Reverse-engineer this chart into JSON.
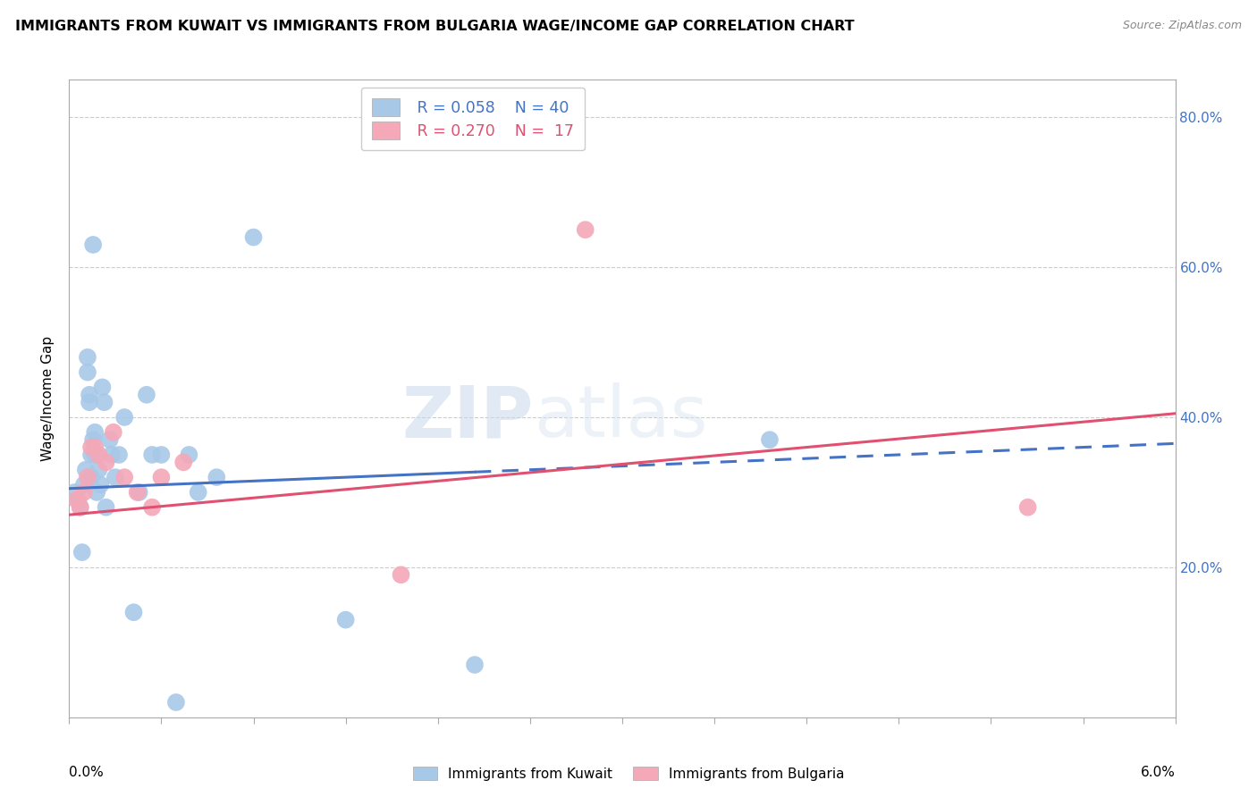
{
  "title": "IMMIGRANTS FROM KUWAIT VS IMMIGRANTS FROM BULGARIA WAGE/INCOME GAP CORRELATION CHART",
  "source": "Source: ZipAtlas.com",
  "ylabel": "Wage/Income Gap",
  "xlim": [
    0.0,
    6.0
  ],
  "ylim": [
    0.0,
    85.0
  ],
  "yticks": [
    0,
    20,
    40,
    60,
    80
  ],
  "legend_r1": "R = 0.058",
  "legend_n1": "N = 40",
  "legend_r2": "R = 0.270",
  "legend_n2": "N =  17",
  "kuwait_color": "#a8c8e8",
  "bulgaria_color": "#f4a8b8",
  "kuwait_line_color": "#4472c4",
  "bulgaria_line_color": "#e05070",
  "watermark_zip": "ZIP",
  "watermark_atlas": "atlas",
  "kuwait_x": [
    0.03,
    0.05,
    0.06,
    0.07,
    0.08,
    0.09,
    0.1,
    0.1,
    0.11,
    0.11,
    0.12,
    0.12,
    0.13,
    0.13,
    0.14,
    0.14,
    0.15,
    0.16,
    0.17,
    0.18,
    0.19,
    0.2,
    0.22,
    0.23,
    0.25,
    0.27,
    0.3,
    0.35,
    0.38,
    0.42,
    0.45,
    0.5,
    0.58,
    0.65,
    0.7,
    0.8,
    1.0,
    1.5,
    2.2,
    3.8
  ],
  "kuwait_y": [
    30,
    29,
    28,
    22,
    31,
    33,
    46,
    48,
    43,
    42,
    35,
    32,
    37,
    63,
    38,
    35,
    30,
    33,
    31,
    44,
    42,
    28,
    37,
    35,
    32,
    35,
    40,
    14,
    30,
    43,
    35,
    35,
    2,
    35,
    30,
    32,
    64,
    13,
    7,
    37
  ],
  "bulgaria_x": [
    0.04,
    0.06,
    0.08,
    0.1,
    0.12,
    0.14,
    0.16,
    0.2,
    0.24,
    0.3,
    0.37,
    0.45,
    0.5,
    0.62,
    1.8,
    2.8,
    5.2
  ],
  "bulgaria_y": [
    29,
    28,
    30,
    32,
    36,
    36,
    35,
    34,
    38,
    32,
    30,
    28,
    32,
    34,
    19,
    65,
    28
  ],
  "kuwait_line_x0": 0.0,
  "kuwait_line_y0": 30.5,
  "kuwait_line_x1": 6.0,
  "kuwait_line_y1": 36.5,
  "kuwait_solid_end": 2.2,
  "bulgaria_line_x0": 0.0,
  "bulgaria_line_y0": 27.0,
  "bulgaria_line_x1": 6.0,
  "bulgaria_line_y1": 40.5,
  "dot_size": 200
}
